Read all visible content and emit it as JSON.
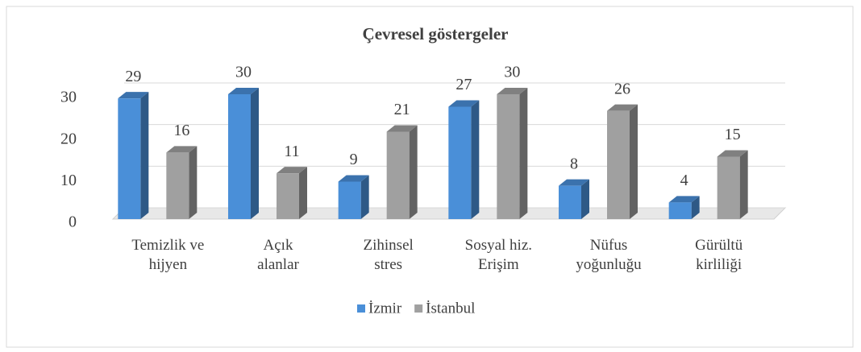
{
  "chart_data": {
    "type": "bar3d",
    "title": "Çevresel göstergeler",
    "categories": [
      "Temizlik ve\nhijyen",
      "Açık\nalanlar",
      "Zihinsel\nstres",
      "Sosyal hiz.\nErişim",
      "Nüfus\nyoğunluğu",
      "Gürültü\nkirliliği"
    ],
    "series": [
      {
        "name": "İzmir",
        "color": "#4a8fd8",
        "values": [
          29,
          30,
          9,
          27,
          8,
          4
        ]
      },
      {
        "name": "İstanbul",
        "color": "#a0a0a0",
        "values": [
          16,
          11,
          21,
          30,
          26,
          15
        ]
      }
    ],
    "ylim": [
      0,
      30
    ],
    "yticks": [
      0,
      10,
      20,
      30
    ],
    "grid": true,
    "legend": "bottom"
  }
}
